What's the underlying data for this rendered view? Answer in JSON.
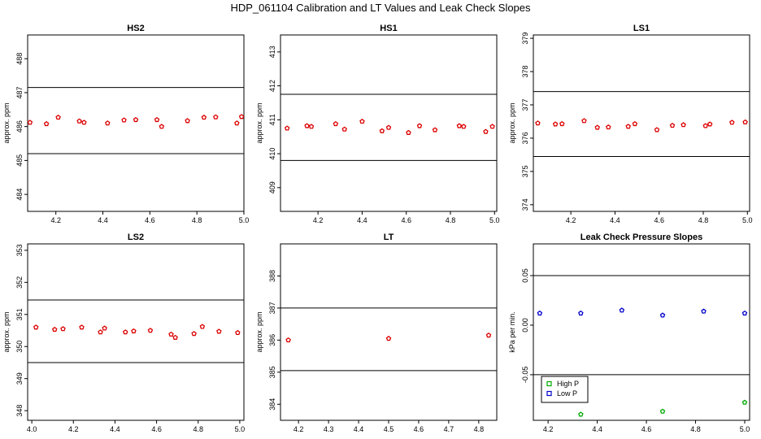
{
  "figure_title": "HDP_061104  Calibration and LT Values and Leak Check Slopes",
  "chart_data": [
    {
      "id": "hs2",
      "type": "scatter",
      "title": "HS2",
      "xlabel": "",
      "ylabel": "approx. ppm",
      "xlim": [
        4.08,
        5.0
      ],
      "ylim": [
        483.5,
        488.7
      ],
      "xticks": [
        4.2,
        4.4,
        4.6,
        4.8,
        5.0
      ],
      "xtick_labels": [
        "4.2",
        "4.4",
        "4.6",
        "4.8",
        "5.0"
      ],
      "yticks": [
        484,
        485,
        486,
        487,
        488
      ],
      "ytick_labels": [
        "484",
        "485",
        "486",
        "487",
        "488"
      ],
      "hlines": [
        485.2,
        487.15
      ],
      "grid": false,
      "series": [
        {
          "color": "#dd0000",
          "x": [
            4.09,
            4.16,
            4.21,
            4.3,
            4.32,
            4.42,
            4.49,
            4.54,
            4.63,
            4.65,
            4.76,
            4.83,
            4.88,
            4.97,
            4.99
          ],
          "y": [
            486.12,
            486.08,
            486.27,
            486.16,
            486.12,
            486.1,
            486.19,
            486.2,
            486.2,
            486.0,
            486.17,
            486.27,
            486.28,
            486.1,
            486.29
          ]
        }
      ]
    },
    {
      "id": "hs1",
      "type": "scatter",
      "title": "HS1",
      "xlabel": "",
      "ylabel": "approx. ppm",
      "xlim": [
        4.03,
        5.01
      ],
      "ylim": [
        408.3,
        413.5
      ],
      "xticks": [
        4.2,
        4.4,
        4.6,
        4.8,
        5.0
      ],
      "xtick_labels": [
        "4.2",
        "4.4",
        "4.6",
        "4.8",
        "5.0"
      ],
      "yticks": [
        409,
        410,
        411,
        412,
        413
      ],
      "ytick_labels": [
        "409",
        "410",
        "411",
        "412",
        "413"
      ],
      "hlines": [
        409.8,
        411.75
      ],
      "grid": false,
      "series": [
        {
          "color": "#dd0000",
          "x": [
            4.06,
            4.15,
            4.17,
            4.28,
            4.32,
            4.4,
            4.49,
            4.52,
            4.61,
            4.66,
            4.73,
            4.84,
            4.86,
            4.96,
            4.99
          ],
          "y": [
            410.75,
            410.82,
            410.8,
            410.88,
            410.72,
            410.95,
            410.67,
            410.77,
            410.62,
            410.82,
            410.7,
            410.82,
            410.8,
            410.65,
            410.8
          ]
        }
      ]
    },
    {
      "id": "ls1",
      "type": "scatter",
      "title": "LS1",
      "xlabel": "",
      "ylabel": "approx. ppm",
      "xlim": [
        4.03,
        5.01
      ],
      "ylim": [
        373.8,
        379.1
      ],
      "xticks": [
        4.2,
        4.4,
        4.6,
        4.8,
        5.0
      ],
      "xtick_labels": [
        "4.2",
        "4.4",
        "4.6",
        "4.8",
        "5.0"
      ],
      "yticks": [
        374,
        375,
        376,
        377,
        378,
        379
      ],
      "ytick_labels": [
        "374",
        "375",
        "376",
        "377",
        "378",
        "379"
      ],
      "hlines": [
        375.45,
        377.4
      ],
      "grid": false,
      "series": [
        {
          "color": "#dd0000",
          "x": [
            4.05,
            4.13,
            4.16,
            4.26,
            4.32,
            4.37,
            4.46,
            4.49,
            4.59,
            4.66,
            4.71,
            4.81,
            4.83,
            4.93,
            4.99
          ],
          "y": [
            376.45,
            376.42,
            376.43,
            376.52,
            376.32,
            376.33,
            376.35,
            376.43,
            376.25,
            376.38,
            376.4,
            376.37,
            376.42,
            376.47,
            376.48
          ]
        }
      ]
    },
    {
      "id": "ls2",
      "type": "scatter",
      "title": "LS2",
      "xlabel": "",
      "ylabel": "approx. ppm",
      "xlim": [
        3.98,
        5.02
      ],
      "ylim": [
        347.7,
        353.2
      ],
      "xticks": [
        4.0,
        4.2,
        4.4,
        4.6,
        4.8,
        5.0
      ],
      "xtick_labels": [
        "4.0",
        "4.2",
        "4.4",
        "4.6",
        "4.8",
        "5.0"
      ],
      "yticks": [
        348,
        349,
        350,
        351,
        352,
        353
      ],
      "ytick_labels": [
        "348",
        "349",
        "350",
        "351",
        "352",
        "353"
      ],
      "hlines": [
        349.5,
        351.45
      ],
      "grid": false,
      "series": [
        {
          "color": "#dd0000",
          "x": [
            4.02,
            4.11,
            4.15,
            4.24,
            4.33,
            4.35,
            4.45,
            4.49,
            4.57,
            4.67,
            4.69,
            4.78,
            4.82,
            4.9,
            4.99
          ],
          "y": [
            350.6,
            350.53,
            350.55,
            350.6,
            350.45,
            350.57,
            350.45,
            350.48,
            350.5,
            350.38,
            350.28,
            350.4,
            350.62,
            350.47,
            350.43
          ]
        }
      ]
    },
    {
      "id": "lt",
      "type": "scatter",
      "title": "LT",
      "xlabel": "",
      "ylabel": "approx. ppm",
      "xlim": [
        4.14,
        4.86
      ],
      "ylim": [
        383.5,
        389.0
      ],
      "xticks": [
        4.2,
        4.3,
        4.4,
        4.5,
        4.6,
        4.7,
        4.8
      ],
      "xtick_labels": [
        "4.2",
        "4.3",
        "4.4",
        "4.5",
        "4.6",
        "4.7",
        "4.8"
      ],
      "yticks": [
        384,
        385,
        386,
        387,
        388
      ],
      "ytick_labels": [
        "384",
        "385",
        "386",
        "387",
        "388"
      ],
      "hlines": [
        385.05,
        387.0
      ],
      "grid": false,
      "series": [
        {
          "color": "#dd0000",
          "x": [
            4.166,
            4.5,
            4.833
          ],
          "y": [
            386.0,
            386.05,
            386.15
          ]
        }
      ]
    },
    {
      "id": "leak",
      "type": "scatter",
      "title": "Leak Check Pressure Slopes",
      "xlabel": "",
      "ylabel": "kPa per min.",
      "xlim": [
        4.14,
        5.02
      ],
      "ylim": [
        -0.096,
        0.082
      ],
      "xticks": [
        4.2,
        4.4,
        4.6,
        4.8,
        5.0
      ],
      "xtick_labels": [
        "4.2",
        "4.4",
        "4.6",
        "4.8",
        "5.0"
      ],
      "yticks": [
        -0.05,
        0.0,
        0.05
      ],
      "ytick_labels": [
        "-0.05",
        "0.00",
        "0.05"
      ],
      "hlines": [
        -0.05,
        0.05
      ],
      "grid": false,
      "legend": {
        "position": "bottom-left"
      },
      "series": [
        {
          "name": "High P",
          "color": "#00aa00",
          "x": [
            4.333,
            4.666,
            5.0
          ],
          "y": [
            -0.09,
            -0.087,
            -0.078
          ]
        },
        {
          "name": "Low P",
          "color": "#0000cc",
          "x": [
            4.166,
            4.333,
            4.5,
            4.666,
            4.833,
            5.0
          ],
          "y": [
            0.012,
            0.012,
            0.015,
            0.01,
            0.014,
            0.012
          ]
        }
      ]
    }
  ]
}
